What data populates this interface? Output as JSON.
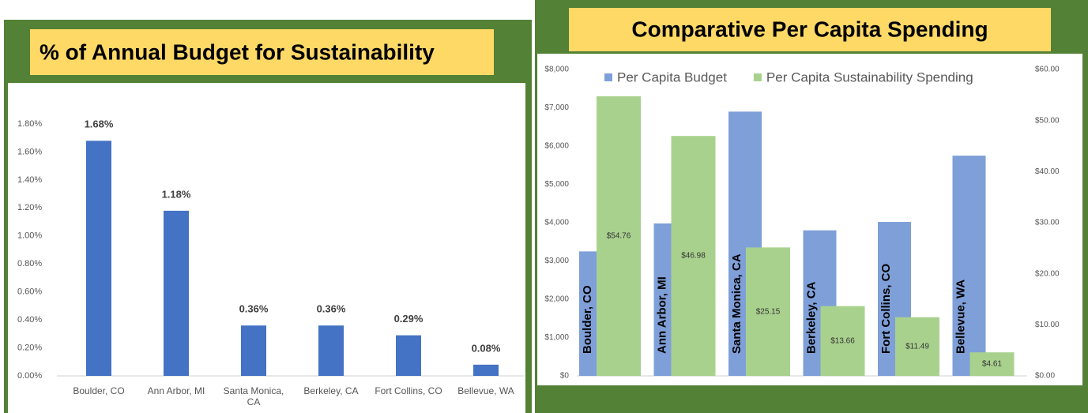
{
  "chart_data": [
    {
      "type": "bar",
      "title": "% of Annual Budget for Sustainability",
      "categories": [
        "Boulder, CO",
        "Ann Arbor, MI",
        "Santa Monica, CA",
        "Berkeley, CA",
        "Fort Collins, CO",
        "Bellevue, WA"
      ],
      "values": [
        1.68,
        1.18,
        0.36,
        0.36,
        0.29,
        0.08
      ],
      "value_labels": [
        "1.68%",
        "1.18%",
        "0.36%",
        "0.36%",
        "0.29%",
        "0.08%"
      ],
      "color": "#4472c4",
      "ylim": [
        0,
        1.8
      ],
      "yticks": [
        {
          "value": 0,
          "label": "0.00%"
        },
        {
          "value": 0.2,
          "label": "0.20%"
        },
        {
          "value": 0.4,
          "label": "0.40%"
        },
        {
          "value": 0.6,
          "label": "0.60%"
        },
        {
          "value": 0.8,
          "label": "0.80%"
        },
        {
          "value": 1.0,
          "label": "1.00%"
        },
        {
          "value": 1.2,
          "label": "1.20%"
        },
        {
          "value": 1.4,
          "label": "1.40%"
        },
        {
          "value": 1.6,
          "label": "1.60%"
        },
        {
          "value": 1.8,
          "label": "1.80%"
        }
      ]
    },
    {
      "type": "bar",
      "title": "Comparative Per Capita Spending",
      "categories": [
        "Boulder, CO",
        "Ann Arbor, MI",
        "Santa Monica, CA",
        "Berkeley, CA",
        "Fort Collins, CO",
        "Bellevue, WA"
      ],
      "series": [
        {
          "name": "Per Capita Budget",
          "color": "#7f9fd8",
          "values": [
            3250,
            3980,
            6900,
            3800,
            4020,
            5750
          ]
        },
        {
          "name": "Per Capita Sustainability Spending",
          "color": "#a9d18e",
          "axis": "y2",
          "values": [
            54.76,
            46.98,
            25.15,
            13.66,
            11.49,
            4.61
          ],
          "value_labels": [
            "$54.76",
            "$46.98",
            "$25.15",
            "$13.66",
            "$11.49",
            "$4.61"
          ]
        }
      ],
      "legend": "top",
      "ylim": [
        0,
        8000
      ],
      "yticks": [
        {
          "value": 0,
          "label": "$0"
        },
        {
          "value": 1000,
          "label": "$1,000"
        },
        {
          "value": 2000,
          "label": "$2,000"
        },
        {
          "value": 3000,
          "label": "$3,000"
        },
        {
          "value": 4000,
          "label": "$4,000"
        },
        {
          "value": 5000,
          "label": "$5,000"
        },
        {
          "value": 6000,
          "label": "$6,000"
        },
        {
          "value": 7000,
          "label": "$7,000"
        },
        {
          "value": 8000,
          "label": "$8,000"
        }
      ],
      "y2lim": [
        0,
        60
      ],
      "y2ticks": [
        {
          "value": 0,
          "label": "$0.00"
        },
        {
          "value": 10,
          "label": "$10.00"
        },
        {
          "value": 20,
          "label": "$20.00"
        },
        {
          "value": 30,
          "label": "$30.00"
        },
        {
          "value": 40,
          "label": "$40.00"
        },
        {
          "value": 50,
          "label": "$50.00"
        },
        {
          "value": 60,
          "label": "$60.00"
        }
      ]
    }
  ]
}
